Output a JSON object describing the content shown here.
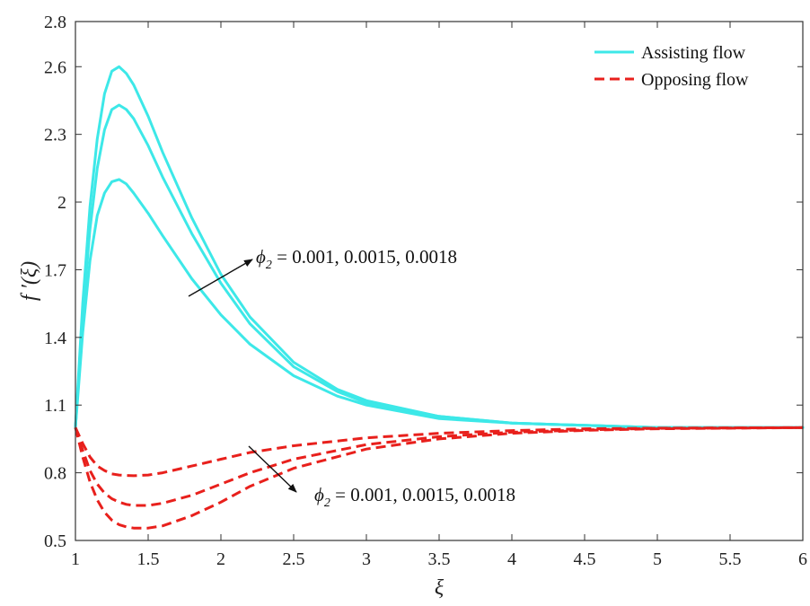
{
  "chart_data": {
    "type": "line",
    "xlabel": "ξ",
    "ylabel": "f ′(ξ)",
    "xlim": [
      1,
      6
    ],
    "ylim": [
      0.5,
      2.8
    ],
    "xticks": [
      1,
      1.5,
      2,
      2.5,
      3,
      3.5,
      4,
      4.5,
      5,
      5.5,
      6
    ],
    "xtick_labels": [
      "1",
      "1.5",
      "2",
      "2.5",
      "3",
      "3.5",
      "4",
      "4.5",
      "5",
      "5.5",
      "6"
    ],
    "yticks": [
      0.5,
      0.8,
      1.1,
      1.4,
      1.7,
      2.0,
      2.3,
      2.6,
      2.8
    ],
    "ytick_labels": [
      "0.5",
      "0.8",
      "1.1",
      "1.4",
      "1.7",
      "2",
      "2.3",
      "2.6",
      "2.8"
    ],
    "grid": false,
    "legend_position": "top-right",
    "legend": [
      {
        "label": "Assisting flow",
        "color": "#3de8e8",
        "style": "solid"
      },
      {
        "label": "Opposing flow",
        "color": "#e8201c",
        "style": "dashed"
      }
    ],
    "series": [
      {
        "group": "Assisting flow",
        "color": "#3de8e8",
        "style": "solid",
        "x": [
          1,
          1.05,
          1.1,
          1.15,
          1.2,
          1.25,
          1.3,
          1.35,
          1.4,
          1.5,
          1.6,
          1.8,
          2.0,
          2.2,
          2.5,
          2.8,
          3.0,
          3.5,
          4.0,
          4.5,
          5.0,
          6.0
        ],
        "y": [
          1.0,
          1.55,
          1.98,
          2.28,
          2.48,
          2.58,
          2.6,
          2.57,
          2.52,
          2.38,
          2.22,
          1.93,
          1.68,
          1.49,
          1.29,
          1.17,
          1.12,
          1.05,
          1.02,
          1.01,
          1.0,
          1.0
        ]
      },
      {
        "group": "Assisting flow",
        "color": "#3de8e8",
        "style": "solid",
        "x": [
          1,
          1.05,
          1.1,
          1.15,
          1.2,
          1.25,
          1.3,
          1.35,
          1.4,
          1.5,
          1.6,
          1.8,
          2.0,
          2.2,
          2.5,
          2.8,
          3.0,
          3.5,
          4.0,
          4.5,
          5.0,
          6.0
        ],
        "y": [
          1.0,
          1.5,
          1.88,
          2.15,
          2.32,
          2.41,
          2.43,
          2.41,
          2.37,
          2.25,
          2.11,
          1.86,
          1.64,
          1.46,
          1.27,
          1.16,
          1.11,
          1.05,
          1.02,
          1.01,
          1.0,
          1.0
        ]
      },
      {
        "group": "Assisting flow",
        "color": "#3de8e8",
        "style": "solid",
        "x": [
          1,
          1.05,
          1.1,
          1.15,
          1.2,
          1.25,
          1.3,
          1.35,
          1.4,
          1.5,
          1.6,
          1.8,
          2.0,
          2.2,
          2.5,
          2.8,
          3.0,
          3.5,
          4.0,
          4.5,
          5.0,
          6.0
        ],
        "y": [
          1.0,
          1.42,
          1.74,
          1.94,
          2.04,
          2.09,
          2.1,
          2.08,
          2.04,
          1.95,
          1.85,
          1.66,
          1.5,
          1.37,
          1.23,
          1.14,
          1.1,
          1.04,
          1.02,
          1.01,
          1.0,
          1.0
        ]
      },
      {
        "group": "Opposing flow",
        "color": "#e8201c",
        "style": "dashed",
        "x": [
          1,
          1.05,
          1.1,
          1.15,
          1.2,
          1.25,
          1.3,
          1.35,
          1.4,
          1.5,
          1.6,
          1.8,
          2.0,
          2.2,
          2.5,
          3.0,
          3.5,
          4.0,
          4.5,
          5.0,
          6.0
        ],
        "y": [
          1.0,
          0.93,
          0.87,
          0.83,
          0.81,
          0.795,
          0.79,
          0.788,
          0.787,
          0.79,
          0.8,
          0.83,
          0.86,
          0.89,
          0.92,
          0.955,
          0.975,
          0.987,
          0.995,
          0.998,
          1.0
        ]
      },
      {
        "group": "Opposing flow",
        "color": "#e8201c",
        "style": "dashed",
        "x": [
          1,
          1.05,
          1.1,
          1.15,
          1.2,
          1.25,
          1.3,
          1.35,
          1.4,
          1.5,
          1.6,
          1.8,
          2.0,
          2.2,
          2.5,
          3.0,
          3.5,
          4.0,
          4.5,
          5.0,
          6.0
        ],
        "y": [
          1.0,
          0.9,
          0.81,
          0.75,
          0.71,
          0.685,
          0.67,
          0.66,
          0.655,
          0.655,
          0.665,
          0.7,
          0.75,
          0.8,
          0.86,
          0.925,
          0.96,
          0.98,
          0.99,
          0.997,
          1.0
        ]
      },
      {
        "group": "Opposing flow",
        "color": "#e8201c",
        "style": "dashed",
        "x": [
          1,
          1.05,
          1.1,
          1.15,
          1.2,
          1.25,
          1.3,
          1.35,
          1.4,
          1.5,
          1.6,
          1.8,
          2.0,
          2.2,
          2.5,
          3.0,
          3.5,
          4.0,
          4.5,
          5.0,
          6.0
        ],
        "y": [
          1.0,
          0.87,
          0.76,
          0.68,
          0.625,
          0.59,
          0.57,
          0.56,
          0.555,
          0.555,
          0.565,
          0.61,
          0.67,
          0.74,
          0.82,
          0.905,
          0.95,
          0.975,
          0.988,
          0.995,
          1.0
        ]
      }
    ],
    "annotations": [
      {
        "text_symbol": "ϕ",
        "subscript": "2",
        "text_rest": " = 0.001, 0.0015, 0.0018",
        "near_x": 2.2,
        "near_y": 1.66
      },
      {
        "text_symbol": "ϕ",
        "subscript": "2",
        "text_rest": " = 0.001, 0.0015, 0.0018",
        "near_x": 2.65,
        "near_y": 0.65
      }
    ]
  }
}
